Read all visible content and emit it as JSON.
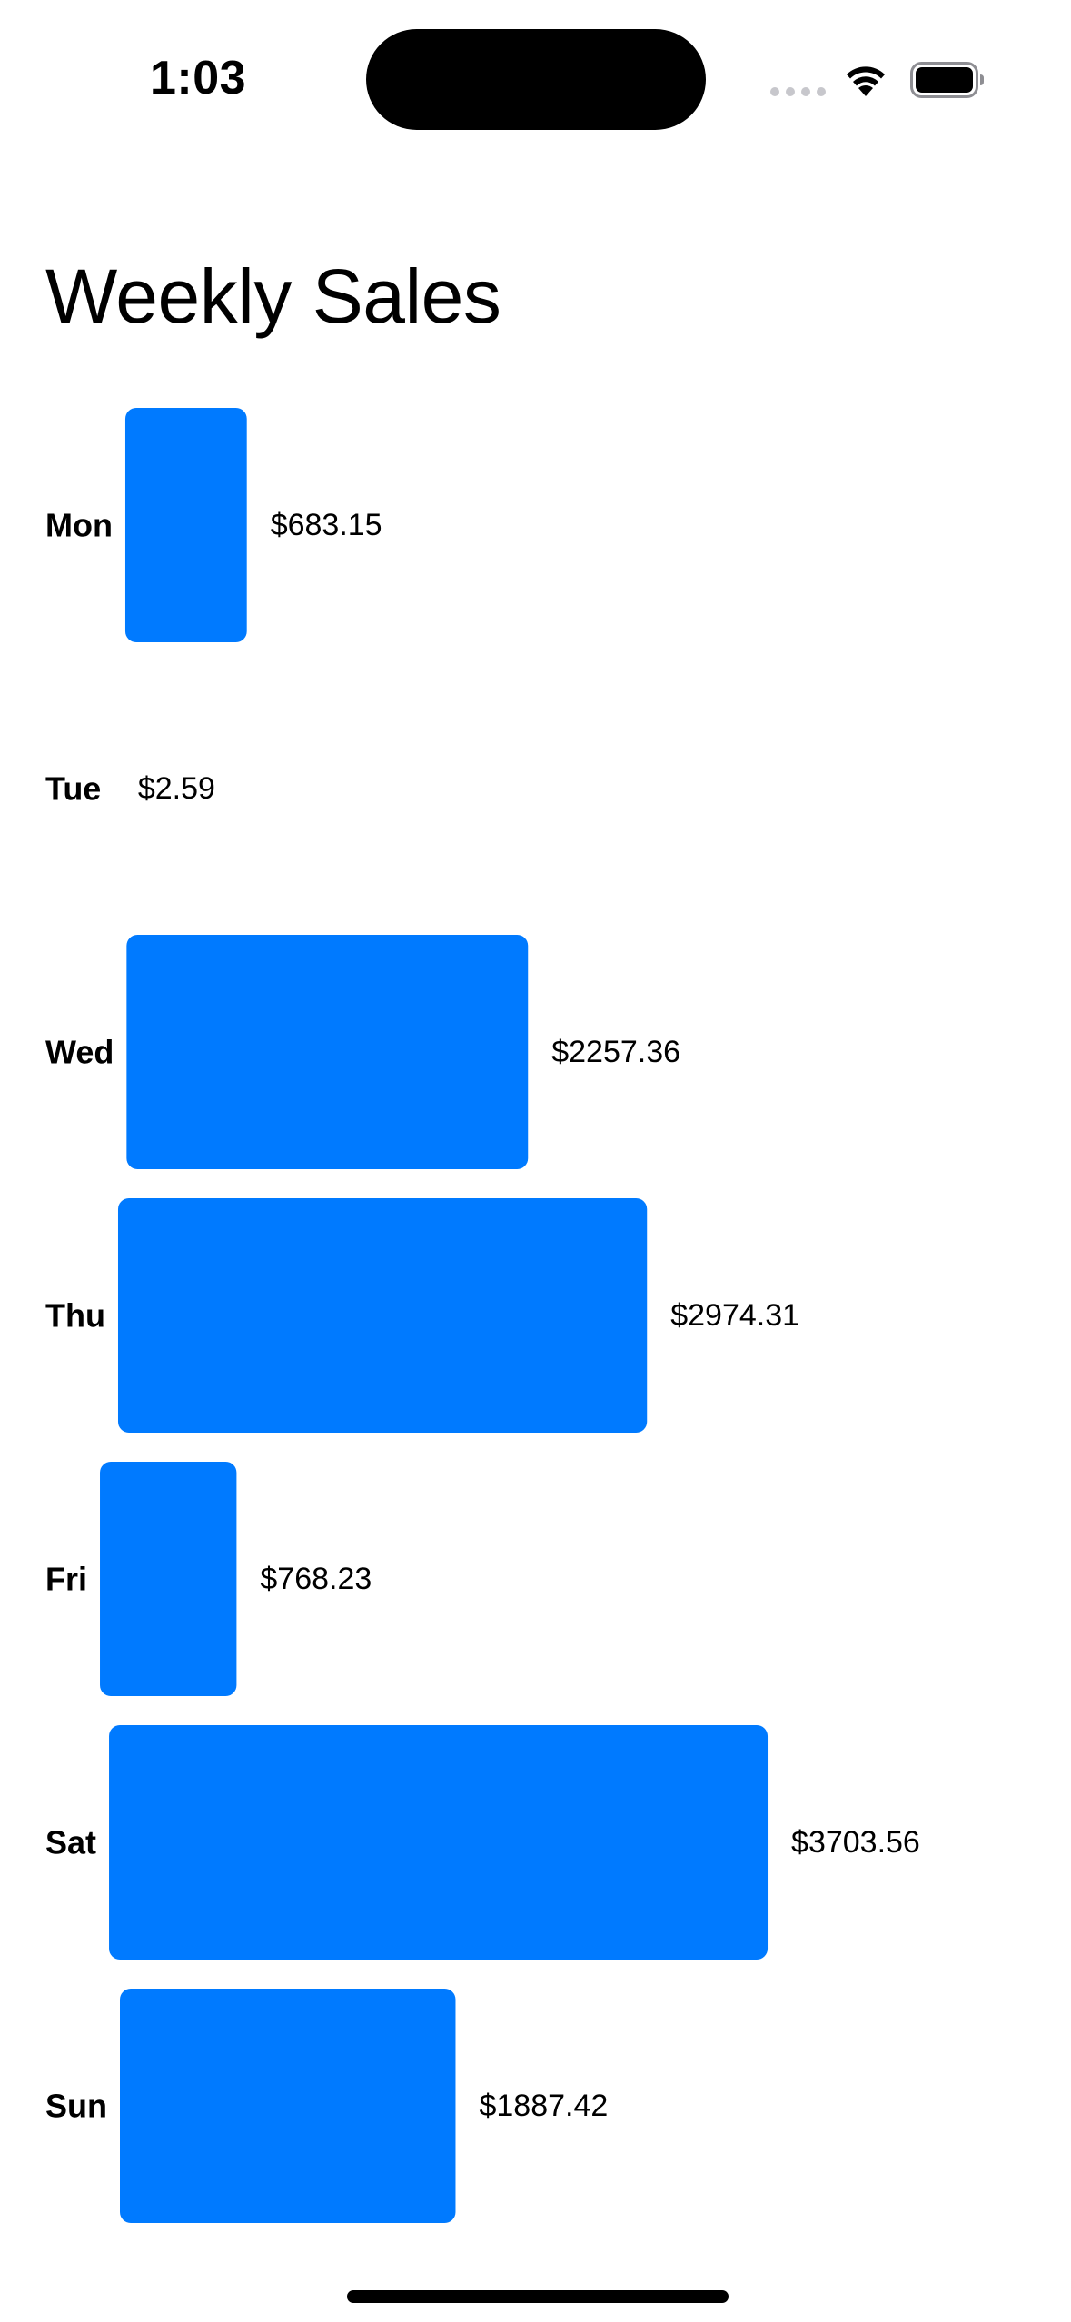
{
  "status_bar": {
    "time": "1:03"
  },
  "colors": {
    "bar": "#007AFF",
    "text": "#000000",
    "background": "#FFFFFF"
  },
  "title": "Weekly Sales",
  "chart_data": {
    "type": "bar",
    "orientation": "horizontal",
    "title": "Weekly Sales",
    "categories": [
      "Mon",
      "Tue",
      "Wed",
      "Thu",
      "Fri",
      "Sat",
      "Sun"
    ],
    "values": [
      683.15,
      2.59,
      2257.36,
      2974.31,
      768.23,
      3703.56,
      1887.42
    ],
    "value_labels": [
      "$683.15",
      "$2.59",
      "$2257.36",
      "$2974.31",
      "$768.23",
      "$3703.56",
      "$1887.42"
    ],
    "xlabel": "",
    "ylabel": "",
    "grid": false,
    "legend": "none"
  }
}
